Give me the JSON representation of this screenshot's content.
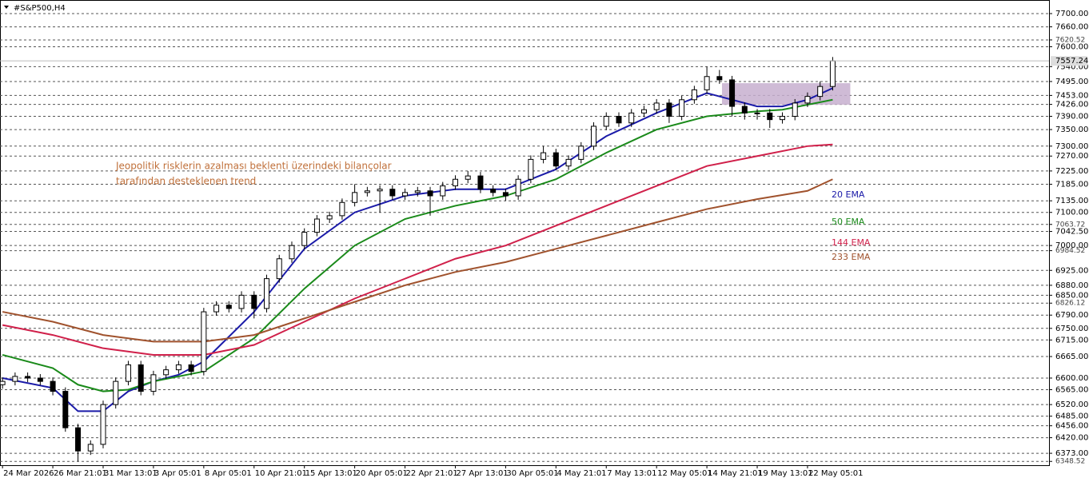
{
  "chart_data": {
    "type": "candlestick",
    "title": "#S&P500,H4",
    "annotation": [
      "Jeopolitik risklerin azalması beklenti üzerindeki bilançolar",
      "tarafından desteklenen trend"
    ],
    "annotation_color": "#c0703a",
    "candles": {
      "up_color": "#ffffff",
      "down_color": "#000000",
      "x": [
        0,
        0.25,
        0.5,
        0.75,
        1,
        1.25,
        1.5,
        1.75,
        2,
        2.25,
        2.5,
        2.75,
        3,
        3.25,
        3.5,
        3.75,
        4,
        4.25,
        4.5,
        4.75,
        5,
        5.25,
        5.5,
        5.75,
        6,
        6.25,
        6.5,
        6.75,
        7,
        7.25,
        7.5,
        7.75,
        8,
        8.25,
        8.5,
        8.75,
        9,
        9.25,
        9.5,
        9.75,
        10,
        10.25,
        10.5,
        10.75,
        11,
        11.25,
        11.5,
        11.75,
        12,
        12.25,
        12.5,
        12.75,
        13,
        13.25,
        13.5,
        13.75,
        14,
        14.25,
        14.5,
        14.75,
        15,
        15.25,
        15.5,
        15.75,
        16,
        16.25,
        16.5
      ],
      "open": [
        6580,
        6590,
        6605,
        6600,
        6590,
        6560,
        6450,
        6380,
        6400,
        6520,
        6590,
        6640,
        6560,
        6610,
        6625,
        6640,
        6620,
        6800,
        6820,
        6810,
        6850,
        6810,
        6900,
        6960,
        7000,
        7040,
        7080,
        7090,
        7130,
        7160,
        7165,
        7170,
        7150,
        7160,
        7165,
        7150,
        7180,
        7200,
        7210,
        7170,
        7160,
        7150,
        7200,
        7260,
        7280,
        7240,
        7260,
        7300,
        7360,
        7390,
        7370,
        7400,
        7410,
        7430,
        7390,
        7440,
        7470,
        7510,
        7500,
        7420,
        7400,
        7400,
        7380,
        7390,
        7430,
        7450,
        7480
      ],
      "high": [
        6602,
        6617,
        6617,
        6612,
        6602,
        6572,
        6462,
        6412,
        6532,
        6602,
        6652,
        6652,
        6622,
        6637,
        6652,
        6652,
        6812,
        6832,
        6832,
        6862,
        6862,
        6912,
        6972,
        7012,
        7052,
        7092,
        7102,
        7142,
        7185,
        7177,
        7182,
        7182,
        7172,
        7177,
        7177,
        7192,
        7212,
        7225,
        7222,
        7182,
        7172,
        7212,
        7272,
        7300,
        7292,
        7272,
        7312,
        7372,
        7402,
        7402,
        7412,
        7422,
        7442,
        7442,
        7452,
        7482,
        7540,
        7530,
        7512,
        7432,
        7412,
        7412,
        7402,
        7442,
        7462,
        7495,
        7569
      ],
      "low": [
        6568,
        6578,
        6588,
        6578,
        6548,
        6438,
        6348.52,
        6368,
        6388,
        6508,
        6578,
        6548,
        6548,
        6598,
        6613,
        6608,
        6608,
        6788,
        6798,
        6798,
        6780,
        6798,
        6888,
        6948,
        6988,
        7028,
        7068,
        7078,
        7118,
        7148,
        7100,
        7138,
        7138,
        7148,
        7090,
        7138,
        7168,
        7188,
        7158,
        7148,
        7135,
        7138,
        7188,
        7248,
        7228,
        7228,
        7248,
        7288,
        7348,
        7358,
        7358,
        7388,
        7398,
        7370,
        7378,
        7428,
        7458,
        7488,
        7390,
        7380,
        7380,
        7355,
        7368,
        7378,
        7418,
        7438,
        7468
      ],
      "close": [
        6590,
        6605,
        6600,
        6590,
        6560,
        6450,
        6380,
        6400,
        6520,
        6590,
        6640,
        6560,
        6610,
        6625,
        6640,
        6620,
        6800,
        6820,
        6810,
        6850,
        6810,
        6900,
        6960,
        7000,
        7040,
        7080,
        7090,
        7130,
        7160,
        7165,
        7170,
        7150,
        7160,
        7165,
        7150,
        7180,
        7200,
        7210,
        7170,
        7160,
        7150,
        7200,
        7260,
        7280,
        7240,
        7260,
        7300,
        7360,
        7390,
        7370,
        7400,
        7410,
        7430,
        7390,
        7440,
        7470,
        7510,
        7500,
        7420,
        7400,
        7400,
        7380,
        7390,
        7430,
        7450,
        7480,
        7557.24
      ]
    },
    "series": [
      {
        "name": "20 EMA",
        "color": "#1a1aa8",
        "x": [
          0,
          1,
          1.5,
          2,
          2.5,
          3,
          3.5,
          4,
          5,
          6,
          7,
          8,
          9,
          10,
          11,
          12,
          13,
          14,
          15,
          15.5,
          16,
          16.5
        ],
        "values": [
          6600,
          6570,
          6500,
          6500,
          6560,
          6590,
          6610,
          6650,
          6800,
          6990,
          7100,
          7150,
          7170,
          7170,
          7230,
          7330,
          7400,
          7460,
          7420,
          7420,
          7440,
          7475
        ]
      },
      {
        "name": "50 EMA",
        "color": "#1a8a1a",
        "x": [
          0,
          1,
          1.5,
          2,
          2.5,
          3,
          4,
          5,
          6,
          7,
          8,
          9,
          10,
          11,
          12,
          13,
          14,
          15,
          15.5,
          16,
          16.5
        ],
        "values": [
          6670,
          6630,
          6580,
          6560,
          6565,
          6590,
          6620,
          6720,
          6870,
          7000,
          7080,
          7120,
          7150,
          7200,
          7280,
          7350,
          7390,
          7405,
          7410,
          7425,
          7440
        ]
      },
      {
        "name": "144 EMA",
        "color": "#d0204a",
        "x": [
          0,
          1,
          2,
          3,
          4,
          5,
          6,
          7,
          8,
          9,
          10,
          11,
          12,
          13,
          14,
          15,
          16,
          16.5
        ],
        "values": [
          6760,
          6730,
          6690,
          6670,
          6670,
          6700,
          6770,
          6840,
          6900,
          6960,
          7000,
          7060,
          7120,
          7180,
          7240,
          7270,
          7300,
          7305
        ]
      },
      {
        "name": "233 EMA",
        "color": "#a0522d",
        "x": [
          0,
          1,
          2,
          3,
          4,
          5,
          6,
          7,
          8,
          9,
          10,
          11,
          12,
          13,
          14,
          15,
          16,
          16.5
        ],
        "values": [
          6800,
          6770,
          6730,
          6710,
          6710,
          6730,
          6780,
          6830,
          6880,
          6920,
          6950,
          6990,
          7030,
          7070,
          7110,
          7140,
          7165,
          7200
        ]
      }
    ],
    "zone": {
      "x": [
        14.3,
        16.85
      ],
      "y": [
        7425,
        7490
      ],
      "color": "#c7afcf"
    },
    "xlim": [
      -0.05,
      20.8
    ],
    "xticks": [
      {
        "value": 0,
        "label": "24 Mar 2026"
      },
      {
        "value": 1,
        "label": "26 Mar 21:01"
      },
      {
        "value": 2,
        "label": "31 Mar 13:01"
      },
      {
        "value": 3,
        "label": "3 Apr 05:01"
      },
      {
        "value": 4,
        "label": "8 Apr 05:01"
      },
      {
        "value": 5,
        "label": "10 Apr 21:01"
      },
      {
        "value": 6,
        "label": "15 Apr 13:01"
      },
      {
        "value": 7,
        "label": "20 Apr 05:01"
      },
      {
        "value": 8,
        "label": "22 Apr 21:01"
      },
      {
        "value": 9,
        "label": "27 Apr 13:01"
      },
      {
        "value": 10,
        "label": "30 Apr 05:01"
      },
      {
        "value": 11,
        "label": "4 May 21:01"
      },
      {
        "value": 12,
        "label": "7 May 13:01"
      },
      {
        "value": 13,
        "label": "12 May 05:01"
      },
      {
        "value": 14,
        "label": "14 May 21:01"
      },
      {
        "value": 15,
        "label": "19 May 13:01"
      },
      {
        "value": 16,
        "label": "22 May 05:01"
      }
    ],
    "ylim": [
      6337,
      7741
    ],
    "yticks": [
      {
        "value": 7700,
        "label": "7700.00"
      },
      {
        "value": 7660,
        "label": "7660.00"
      },
      7620.52,
      {
        "value": 7600,
        "label": "7600.00"
      },
      {
        "value": 7540,
        "label": "7540.00"
      },
      {
        "value": 7495,
        "label": "7495.00"
      },
      {
        "value": 7453,
        "label": "7453.00"
      },
      {
        "value": 7426,
        "label": "7426.00"
      },
      {
        "value": 7390,
        "label": "7390.00"
      },
      {
        "value": 7350,
        "label": "7350.00"
      },
      {
        "value": 7300,
        "label": "7300.00"
      },
      {
        "value": 7270,
        "label": "7270.00"
      },
      {
        "value": 7225,
        "label": "7225.00"
      },
      {
        "value": 7185,
        "label": "7185.00"
      },
      {
        "value": 7135,
        "label": "7135.00"
      },
      {
        "value": 7100,
        "label": "7100.00"
      },
      7063.72,
      {
        "value": 7042.5,
        "label": "7042.50"
      },
      {
        "value": 7000,
        "label": "7000.00"
      },
      6984.52,
      {
        "value": 6925,
        "label": "6925.00"
      },
      {
        "value": 6880,
        "label": "6880.00"
      },
      {
        "value": 6850,
        "label": "6850.00"
      },
      6826.12,
      {
        "value": 6790,
        "label": "6790.00"
      },
      {
        "value": 6750,
        "label": "6750.00"
      },
      {
        "value": 6715,
        "label": "6715.00"
      },
      {
        "value": 6665,
        "label": "6665.00"
      },
      {
        "value": 6600,
        "label": "6600.00"
      },
      {
        "value": 6565,
        "label": "6565.00"
      },
      {
        "value": 6520,
        "label": "6520.00"
      },
      {
        "value": 6485,
        "label": "6485.00"
      },
      {
        "value": 6456,
        "label": "6456.00"
      },
      {
        "value": 6420,
        "label": "6420.00"
      },
      {
        "value": 6373,
        "label": "6373.00"
      },
      6348.52
    ],
    "grid": true
  }
}
